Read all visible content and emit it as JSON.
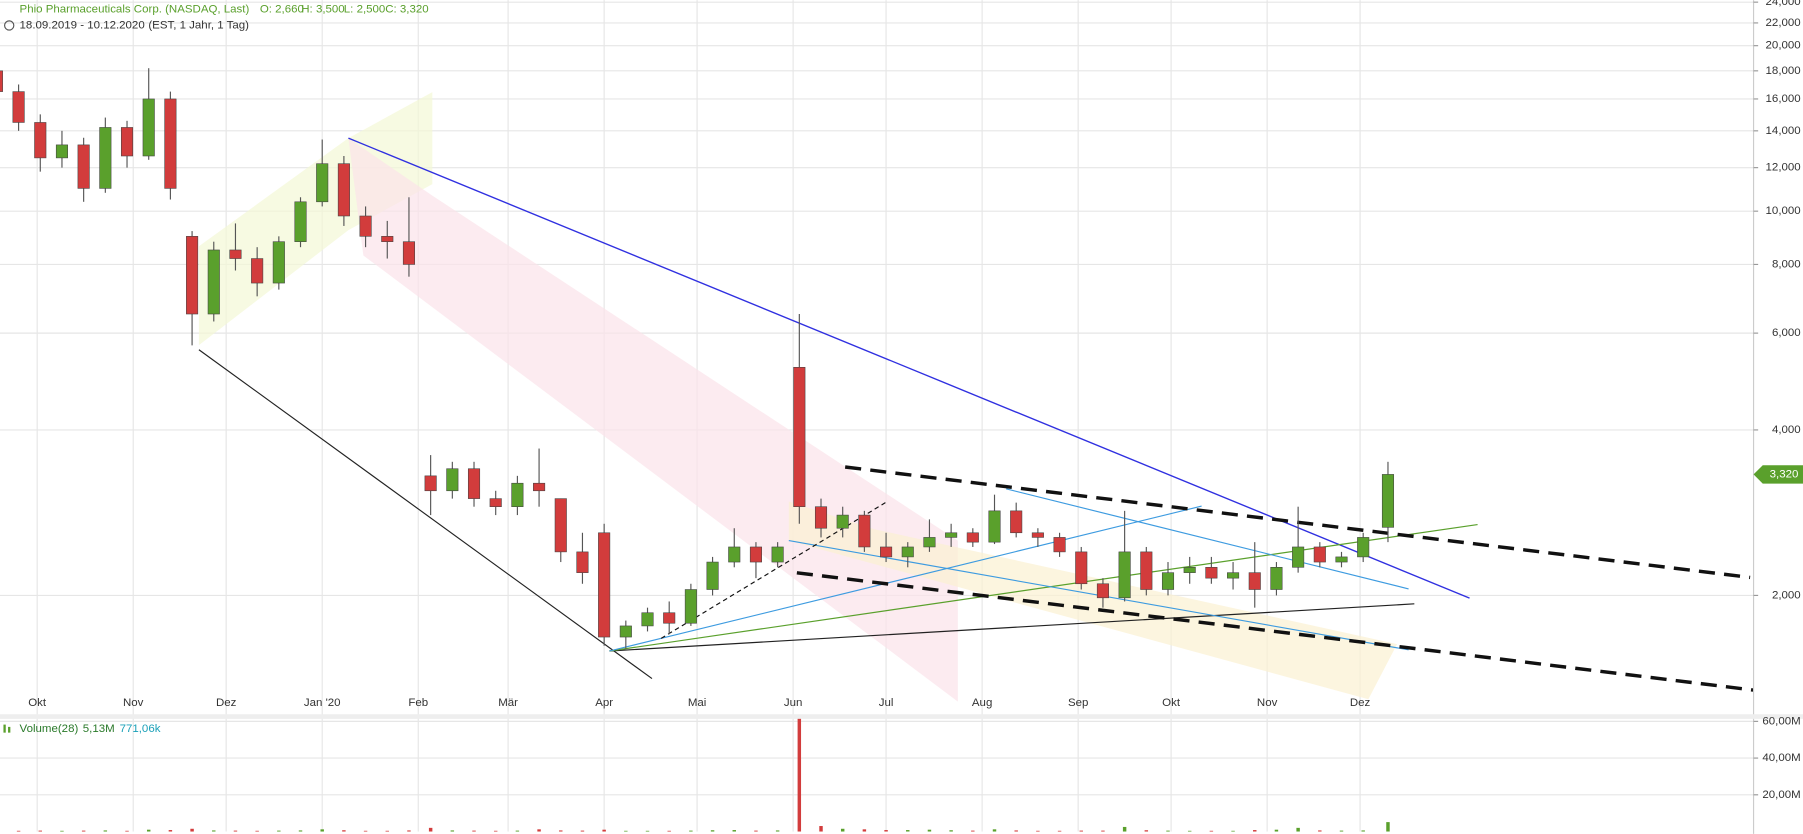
{
  "chart_data": [
    {
      "type": "candlestick",
      "title": "Phio Pharmaceuticals Corp. (NASDAQ, Last)",
      "summary": [
        {
          "value": 2.66,
          "label": "O: 2,660"
        },
        {
          "value": 3.5,
          "label": "H: 3,500"
        },
        {
          "value": 2.5,
          "label": "L: 2,500"
        },
        {
          "value": 3.32,
          "label": "C: 3,320"
        }
      ],
      "period": "18.09.2019 - 10.12.2020",
      "settings_text": "(EST, 1 Jahr, 1 Tag)",
      "last_price": {
        "value": 3.32,
        "label": "3,320"
      },
      "up_color": "#5aa02c",
      "down_color": "#d23c3c",
      "log_scale": true,
      "grid": true,
      "x": [
        "2019-09-18",
        "2019-09-25",
        "2019-10-02",
        "2019-10-09",
        "2019-10-16",
        "2019-10-23",
        "2019-10-30",
        "2019-11-06",
        "2019-11-13",
        "2019-11-20",
        "2019-11-27",
        "2019-12-04",
        "2019-12-11",
        "2019-12-18",
        "2019-12-25",
        "2020-01-01",
        "2020-01-08",
        "2020-01-15",
        "2020-01-22",
        "2020-01-29",
        "2020-02-05",
        "2020-02-12",
        "2020-02-19",
        "2020-02-26",
        "2020-03-04",
        "2020-03-11",
        "2020-03-18",
        "2020-03-25",
        "2020-04-01",
        "2020-04-08",
        "2020-04-15",
        "2020-04-22",
        "2020-04-29",
        "2020-05-06",
        "2020-05-13",
        "2020-05-20",
        "2020-05-27",
        "2020-06-03",
        "2020-06-10",
        "2020-06-17",
        "2020-06-24",
        "2020-07-01",
        "2020-07-08",
        "2020-07-15",
        "2020-07-22",
        "2020-07-29",
        "2020-08-05",
        "2020-08-12",
        "2020-08-19",
        "2020-08-26",
        "2020-09-02",
        "2020-09-09",
        "2020-09-16",
        "2020-09-23",
        "2020-09-30",
        "2020-10-07",
        "2020-10-14",
        "2020-10-21",
        "2020-10-28",
        "2020-11-04",
        "2020-11-11",
        "2020-11-18",
        "2020-11-25",
        "2020-12-02",
        "2020-12-10"
      ],
      "open": [
        18.0,
        16.5,
        14.5,
        12.5,
        13.2,
        11.0,
        14.2,
        12.6,
        16.0,
        9.0,
        6.5,
        8.5,
        8.2,
        7.4,
        8.8,
        10.4,
        12.2,
        9.8,
        9.0,
        8.8,
        3.3,
        3.1,
        3.4,
        3.0,
        2.9,
        3.2,
        3.0,
        2.4,
        2.6,
        1.68,
        1.76,
        1.86,
        1.78,
        2.05,
        2.3,
        2.45,
        2.3,
        5.2,
        2.9,
        2.65,
        2.8,
        2.45,
        2.35,
        2.45,
        2.55,
        2.6,
        2.5,
        2.85,
        2.6,
        2.55,
        2.4,
        2.1,
        1.98,
        2.4,
        2.05,
        2.2,
        2.25,
        2.15,
        2.2,
        2.05,
        2.25,
        2.45,
        2.3,
        2.35,
        2.66
      ],
      "high": [
        18.4,
        17.0,
        15.0,
        14.0,
        13.6,
        14.8,
        14.6,
        18.2,
        16.5,
        9.2,
        8.8,
        9.5,
        8.6,
        9.0,
        10.6,
        13.5,
        12.6,
        10.2,
        9.6,
        10.6,
        3.6,
        3.5,
        3.5,
        3.1,
        3.3,
        3.7,
        3.0,
        2.6,
        2.7,
        1.8,
        1.9,
        1.95,
        2.1,
        2.35,
        2.65,
        2.5,
        2.5,
        6.5,
        3.0,
        2.9,
        2.85,
        2.6,
        2.5,
        2.75,
        2.7,
        2.65,
        3.05,
        2.95,
        2.65,
        2.6,
        2.45,
        2.15,
        2.85,
        2.45,
        2.3,
        2.35,
        2.35,
        2.3,
        2.5,
        2.3,
        2.9,
        2.5,
        2.4,
        2.6,
        3.5
      ],
      "low": [
        16.2,
        14.0,
        11.8,
        12.0,
        10.4,
        10.8,
        12.0,
        12.4,
        10.5,
        5.7,
        6.3,
        7.8,
        7.0,
        7.2,
        8.6,
        10.2,
        9.4,
        8.6,
        8.2,
        7.6,
        2.8,
        3.0,
        2.9,
        2.8,
        2.8,
        2.9,
        2.3,
        2.1,
        1.62,
        1.6,
        1.72,
        1.7,
        1.76,
        2.0,
        2.25,
        2.15,
        2.25,
        2.7,
        2.55,
        2.55,
        2.4,
        2.3,
        2.25,
        2.4,
        2.45,
        2.45,
        2.48,
        2.55,
        2.45,
        2.35,
        2.05,
        1.9,
        1.95,
        2.0,
        2.0,
        2.1,
        2.1,
        2.05,
        1.9,
        2.0,
        2.2,
        2.25,
        2.25,
        2.3,
        2.5
      ],
      "close": [
        16.5,
        14.5,
        12.5,
        13.2,
        11.0,
        14.2,
        12.6,
        16.0,
        11.0,
        6.5,
        8.5,
        8.2,
        7.4,
        8.8,
        10.4,
        12.2,
        9.8,
        9.0,
        8.8,
        8.0,
        3.1,
        3.4,
        3.0,
        2.9,
        3.2,
        3.1,
        2.4,
        2.2,
        1.68,
        1.76,
        1.86,
        1.78,
        2.05,
        2.3,
        2.45,
        2.3,
        2.45,
        2.9,
        2.65,
        2.8,
        2.45,
        2.35,
        2.45,
        2.55,
        2.6,
        2.5,
        2.85,
        2.6,
        2.55,
        2.4,
        2.1,
        1.98,
        2.4,
        2.05,
        2.2,
        2.25,
        2.15,
        2.2,
        2.05,
        2.25,
        2.45,
        2.3,
        2.35,
        2.55,
        3.32
      ],
      "xlim": [
        "2019-09-19",
        "2021-04-07"
      ],
      "xticks": [
        {
          "value": "2019-10-01",
          "label": "Okt"
        },
        {
          "value": "2019-11-01",
          "label": "Nov"
        },
        {
          "value": "2019-12-01",
          "label": "Dez"
        },
        {
          "value": "2020-01-01",
          "label": "Jan '20"
        },
        {
          "value": "2020-02-01",
          "label": "Feb"
        },
        {
          "value": "2020-03-01",
          "label": "Mär"
        },
        {
          "value": "2020-04-01",
          "label": "Apr"
        },
        {
          "value": "2020-05-01",
          "label": "Mai"
        },
        {
          "value": "2020-06-01",
          "label": "Jun"
        },
        {
          "value": "2020-07-01",
          "label": "Jul"
        },
        {
          "value": "2020-08-01",
          "label": "Aug"
        },
        {
          "value": "2020-09-01",
          "label": "Sep"
        },
        {
          "value": "2020-10-01",
          "label": "Okt"
        },
        {
          "value": "2020-11-01",
          "label": "Nov"
        },
        {
          "value": "2020-12-01",
          "label": "Dez"
        }
      ],
      "ylim": [
        1.21,
        24.2
      ],
      "yticks": [
        {
          "value": 2,
          "label": "2,000"
        },
        {
          "value": 4,
          "label": "4,000"
        },
        {
          "value": 6,
          "label": "6,000"
        },
        {
          "value": 8,
          "label": "8,000"
        },
        {
          "value": 10,
          "label": "10,000"
        },
        {
          "value": 12,
          "label": "12,000"
        },
        {
          "value": 14,
          "label": "14,000"
        },
        {
          "value": 16,
          "label": "16,000"
        },
        {
          "value": 18,
          "label": "18,000"
        },
        {
          "value": 20,
          "label": "20,000"
        },
        {
          "value": 22,
          "label": "22,000"
        },
        {
          "value": 24,
          "label": "24,000"
        }
      ]
    },
    {
      "type": "bar",
      "title": "Volume(28)",
      "last": {
        "value": 5.13,
        "label": "5,13M"
      },
      "average": {
        "value": 0.77106,
        "label": "771,06k"
      },
      "values": [
        0.4,
        0.4,
        0.5,
        0.4,
        0.5,
        0.6,
        0.4,
        1.0,
        0.8,
        1.5,
        0.6,
        0.5,
        0.4,
        0.5,
        0.6,
        1.2,
        0.7,
        0.4,
        0.4,
        0.6,
        2.0,
        0.6,
        0.5,
        0.4,
        0.5,
        1.2,
        0.6,
        0.5,
        1.0,
        0.4,
        0.4,
        0.4,
        0.5,
        0.7,
        0.8,
        0.5,
        0.6,
        62,
        3.0,
        1.5,
        1.2,
        0.8,
        0.8,
        1.0,
        0.7,
        0.5,
        1.2,
        0.6,
        0.4,
        0.4,
        0.5,
        0.5,
        2.5,
        0.7,
        0.5,
        0.4,
        0.4,
        0.4,
        0.8,
        1.0,
        2.0,
        0.6,
        0.5,
        0.6,
        5.13
      ],
      "ylim": [
        0,
        62
      ],
      "yticks": [
        {
          "value": 20,
          "label": "20,00M"
        },
        {
          "value": 40,
          "label": "40,00M"
        },
        {
          "value": 60,
          "label": "60,00M"
        }
      ]
    }
  ]
}
